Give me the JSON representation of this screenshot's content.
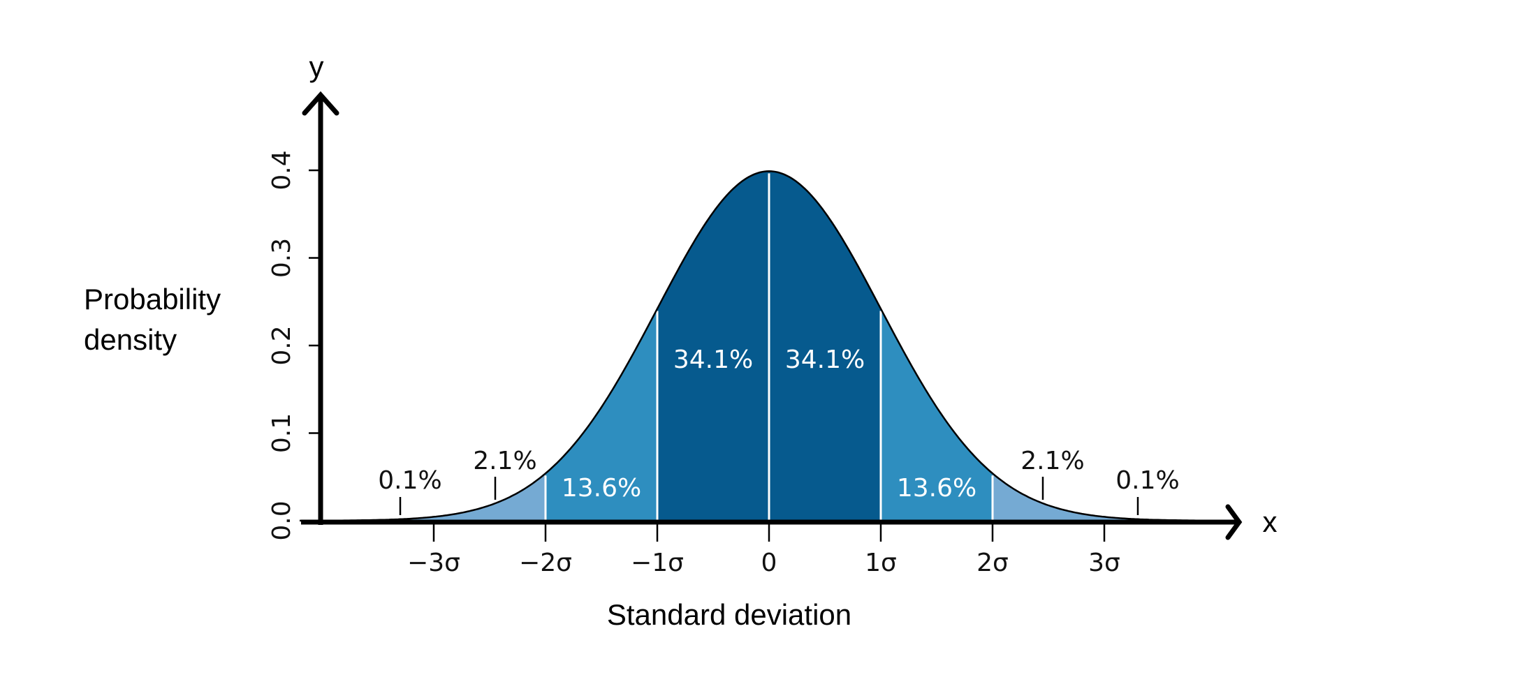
{
  "chart_data": {
    "type": "area",
    "title": "",
    "xlabel": "Standard deviation",
    "ylabel": "Probability density",
    "x_axis_letter": "x",
    "y_axis_letter": "y",
    "xlim": [
      -4,
      4
    ],
    "ylim": [
      0,
      0.45
    ],
    "x_ticks": [
      -3,
      -2,
      -1,
      0,
      1,
      2,
      3
    ],
    "x_tick_labels": [
      "−3σ",
      "−2σ",
      "−1σ",
      "0",
      "1σ",
      "2σ",
      "3σ"
    ],
    "y_ticks": [
      0.0,
      0.1,
      0.2,
      0.3,
      0.4
    ],
    "y_tick_labels": [
      "0.0",
      "0.1",
      "0.2",
      "0.3",
      "0.4"
    ],
    "curve": "standard normal density, mean 0, sd 1",
    "grid": false,
    "legend": "none",
    "regions": [
      {
        "from": -4,
        "to": -3,
        "label": "0.1%",
        "color": "#75aad3"
      },
      {
        "from": -3,
        "to": -2,
        "label": "2.1%",
        "color": "#75aad3"
      },
      {
        "from": -2,
        "to": -1,
        "label": "13.6%",
        "color": "#2e8ebf"
      },
      {
        "from": -1,
        "to": 0,
        "label": "34.1%",
        "color": "#065a8e"
      },
      {
        "from": 0,
        "to": 1,
        "label": "34.1%",
        "color": "#065a8e"
      },
      {
        "from": 1,
        "to": 2,
        "label": "13.6%",
        "color": "#2e8ebf"
      },
      {
        "from": 2,
        "to": 3,
        "label": "2.1%",
        "color": "#75aad3"
      },
      {
        "from": 3,
        "to": 4,
        "label": "0.1%",
        "color": "#75aad3"
      }
    ]
  }
}
